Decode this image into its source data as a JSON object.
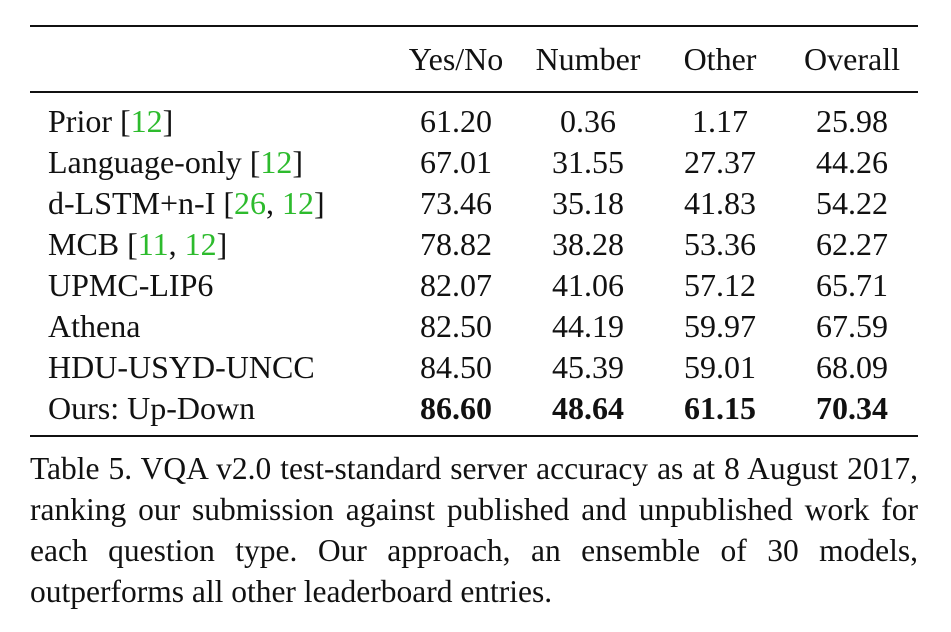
{
  "table": {
    "headers": [
      "",
      "Yes/No",
      "Number",
      "Other",
      "Overall"
    ],
    "rows": [
      {
        "method": "Prior ",
        "refs": [
          "12"
        ],
        "values": [
          "61.20",
          "0.36",
          "1.17",
          "25.98"
        ],
        "bold": false
      },
      {
        "method": "Language-only ",
        "refs": [
          "12"
        ],
        "values": [
          "67.01",
          "31.55",
          "27.37",
          "44.26"
        ],
        "bold": false
      },
      {
        "method": "d-LSTM+n-I ",
        "refs": [
          "26",
          "12"
        ],
        "values": [
          "73.46",
          "35.18",
          "41.83",
          "54.22"
        ],
        "bold": false
      },
      {
        "method": "MCB ",
        "refs": [
          "11",
          "12"
        ],
        "values": [
          "78.82",
          "38.28",
          "53.36",
          "62.27"
        ],
        "bold": false
      },
      {
        "method": "UPMC-LIP6",
        "refs": [],
        "values": [
          "82.07",
          "41.06",
          "57.12",
          "65.71"
        ],
        "bold": false
      },
      {
        "method": "Athena",
        "refs": [],
        "values": [
          "82.50",
          "44.19",
          "59.97",
          "67.59"
        ],
        "bold": false
      },
      {
        "method": "HDU-USYD-UNCC",
        "refs": [],
        "values": [
          "84.50",
          "45.39",
          "59.01",
          "68.09"
        ],
        "bold": false
      },
      {
        "method": "Ours: Up-Down",
        "refs": [],
        "values": [
          "86.60",
          "48.64",
          "61.15",
          "70.34"
        ],
        "bold": true
      }
    ]
  },
  "caption": "Table 5. VQA v2.0 test-standard server accuracy as at 8 August 2017, ranking our submission against published and unpublished work for each question type.  Our approach, an ensemble of 30 models, outperforms all other leaderboard entries.",
  "colors": {
    "citation": "#2dbb2d",
    "text": "#111111"
  }
}
